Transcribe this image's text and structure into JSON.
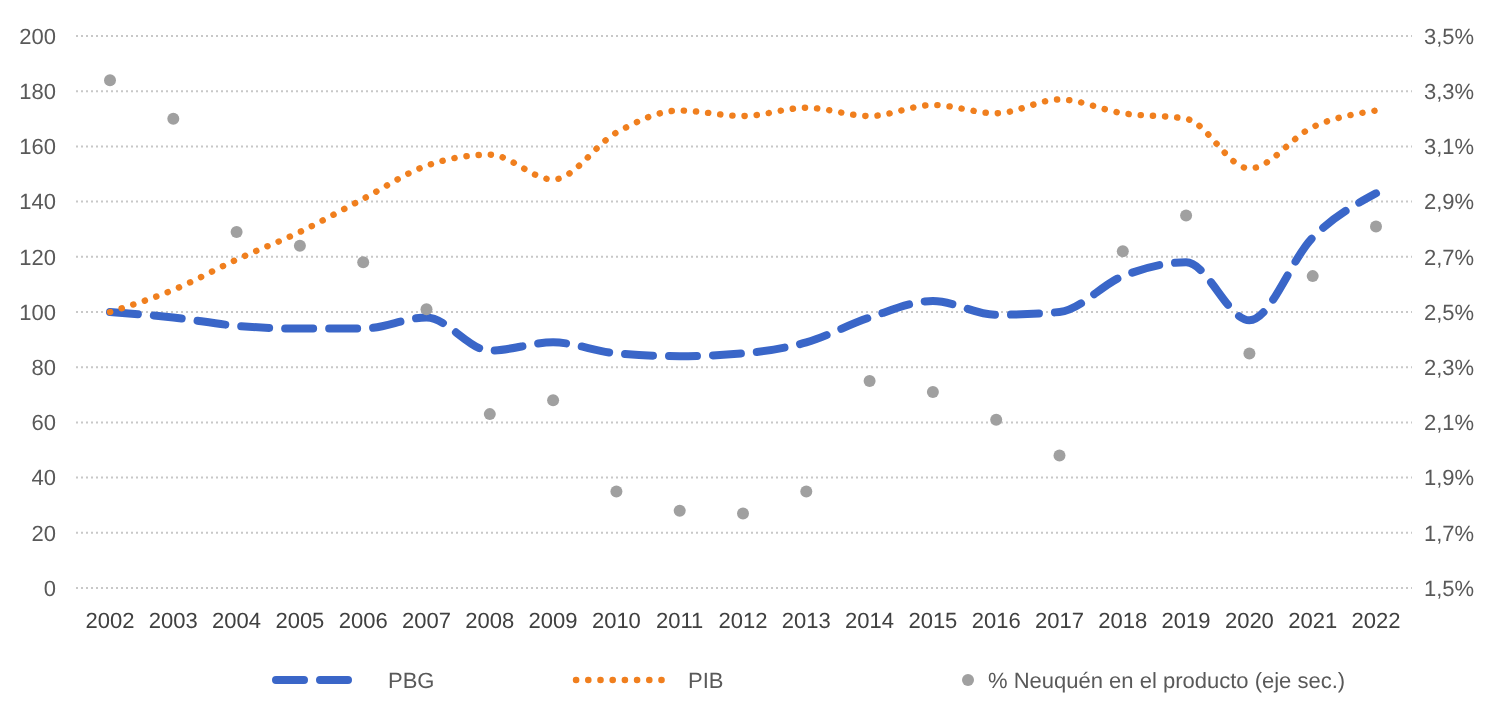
{
  "chart_data": {
    "type": "line",
    "categories": [
      "2002",
      "2003",
      "2004",
      "2005",
      "2006",
      "2007",
      "2008",
      "2009",
      "2010",
      "2011",
      "2012",
      "2013",
      "2014",
      "2015",
      "2016",
      "2017",
      "2018",
      "2019",
      "2020",
      "2021",
      "2022"
    ],
    "series": [
      {
        "name": "PBG",
        "color": "#3a66c8",
        "line_style": "dashed",
        "values": [
          100,
          98,
          95,
          94,
          94,
          98,
          86,
          89,
          85,
          84,
          85,
          89,
          98,
          104,
          99,
          100,
          113,
          118,
          97,
          127,
          143
        ]
      },
      {
        "name": "PIB",
        "color": "#f07f1e",
        "line_style": "dotted",
        "values": [
          100,
          108,
          119,
          129,
          141,
          153,
          157,
          148,
          165,
          173,
          171,
          174,
          171,
          175,
          172,
          177,
          172,
          170,
          152,
          167,
          173
        ]
      },
      {
        "name": "% Neuquén en el producto (eje sec.)",
        "type": "scatter",
        "axis": "y2",
        "marker": "circle",
        "color": "#a0a0a0",
        "values": [
          3.34,
          3.2,
          2.79,
          2.74,
          2.68,
          2.51,
          2.13,
          2.18,
          1.85,
          1.78,
          1.77,
          1.85,
          2.25,
          2.21,
          2.11,
          1.98,
          2.72,
          2.85,
          2.35,
          2.63,
          2.81
        ]
      }
    ],
    "ylim": [
      0,
      200
    ],
    "yticks": [
      0,
      20,
      40,
      60,
      80,
      100,
      120,
      140,
      160,
      180,
      200
    ],
    "y2lim": [
      1.5,
      3.5
    ],
    "y2ticks": [
      {
        "value": 1.5,
        "label": "1,5%"
      },
      {
        "value": 1.7,
        "label": "1,7%"
      },
      {
        "value": 1.9,
        "label": "1,9%"
      },
      {
        "value": 2.1,
        "label": "2,1%"
      },
      {
        "value": 2.3,
        "label": "2,3%"
      },
      {
        "value": 2.5,
        "label": "2,5%"
      },
      {
        "value": 2.7,
        "label": "2,7%"
      },
      {
        "value": 2.9,
        "label": "2,9%"
      },
      {
        "value": 3.1,
        "label": "3,1%"
      },
      {
        "value": 3.3,
        "label": "3,3%"
      },
      {
        "value": 3.5,
        "label": "3,5%"
      }
    ],
    "grid": "y",
    "legend": "bottom",
    "marker": "none"
  }
}
